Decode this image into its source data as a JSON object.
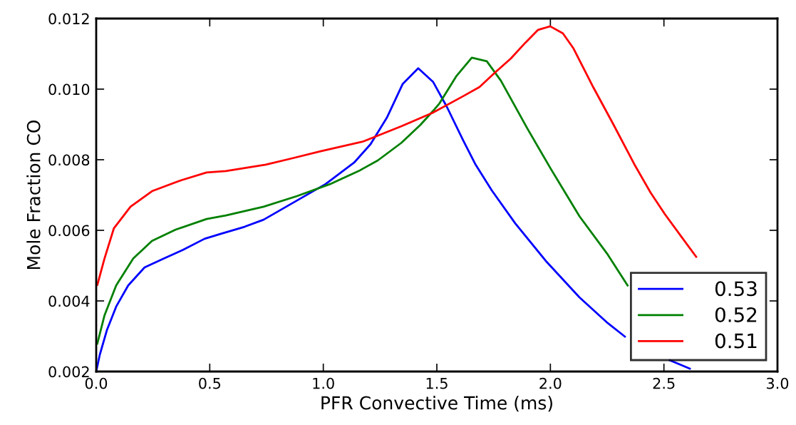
{
  "chart_data": {
    "type": "line",
    "xlabel": "PFR Convective Time (ms)",
    "ylabel": "Mole Fraction CO",
    "xlim": [
      0.0,
      3.0
    ],
    "xticks": [
      {
        "value": 0.0,
        "label": "0.0"
      },
      {
        "value": 0.5,
        "label": "0.5"
      },
      {
        "value": 1.0,
        "label": "1.0"
      },
      {
        "value": 1.5,
        "label": "1.5"
      },
      {
        "value": 2.0,
        "label": "2.0"
      },
      {
        "value": 2.5,
        "label": "2.5"
      },
      {
        "value": 3.0,
        "label": "3.0"
      }
    ],
    "ylim": [
      0.002,
      0.012
    ],
    "yticks": [
      {
        "value": 0.002,
        "label": "0.002"
      },
      {
        "value": 0.004,
        "label": "0.004"
      },
      {
        "value": 0.006,
        "label": "0.006"
      },
      {
        "value": 0.008,
        "label": "0.008"
      },
      {
        "value": 0.01,
        "label": "0.010"
      },
      {
        "value": 0.012,
        "label": "0.012"
      }
    ],
    "grid": false,
    "legend": "bottom right",
    "line_style": "solid",
    "marker": "none",
    "series": [
      {
        "name": "0.53",
        "color": "#0000ff",
        "x": [
          0.0,
          0.016,
          0.047,
          0.088,
          0.141,
          0.213,
          0.298,
          0.383,
          0.477,
          0.549,
          0.653,
          0.737,
          0.853,
          1.01,
          1.136,
          1.208,
          1.28,
          1.349,
          1.418,
          1.484,
          1.544,
          1.616,
          1.669,
          1.742,
          1.845,
          1.983,
          2.128,
          2.253,
          2.328,
          2.43,
          2.526,
          2.614
        ],
        "values": [
          0.002,
          0.00248,
          0.00317,
          0.00384,
          0.00444,
          0.00495,
          0.0052,
          0.00545,
          0.00576,
          0.0059,
          0.0061,
          0.0063,
          0.00673,
          0.00731,
          0.00792,
          0.00844,
          0.00919,
          0.01014,
          0.01059,
          0.0102,
          0.0095,
          0.00855,
          0.00788,
          0.00713,
          0.0062,
          0.00511,
          0.0041,
          0.00337,
          0.00299,
          null,
          0.00232,
          0.00208
        ]
      },
      {
        "name": "0.52",
        "color": "#008000",
        "x": [
          0.005,
          0.036,
          0.088,
          0.163,
          0.246,
          0.35,
          0.486,
          0.571,
          0.737,
          0.884,
          1.03,
          1.156,
          1.24,
          1.344,
          1.428,
          1.49,
          1.512,
          1.585,
          1.654,
          1.72,
          1.782,
          1.898,
          2.002,
          2.128,
          2.253,
          2.34
        ],
        "values": [
          0.00279,
          0.00358,
          0.00444,
          0.0052,
          0.0057,
          0.00602,
          0.00632,
          0.00642,
          0.00667,
          0.00697,
          0.00731,
          0.00768,
          0.00798,
          0.00848,
          0.00899,
          0.00943,
          0.0096,
          0.01036,
          0.01089,
          0.01079,
          0.01024,
          0.00889,
          0.00774,
          0.0064,
          0.00531,
          0.00444
        ]
      },
      {
        "name": "0.51",
        "color": "#ff0000",
        "x": [
          0.0,
          0.005,
          0.036,
          0.078,
          0.151,
          0.246,
          0.37,
          0.486,
          0.571,
          0.747,
          0.863,
          0.988,
          1.177,
          1.344,
          1.481,
          1.616,
          1.688,
          1.751,
          1.826,
          1.889,
          1.946,
          1.999,
          2.055,
          2.102,
          2.19,
          2.275,
          2.369,
          2.441,
          2.504,
          2.579,
          2.642
        ],
        "values": [
          0.0045,
          0.00445,
          0.00519,
          0.00606,
          0.00667,
          0.00711,
          0.00741,
          0.00764,
          0.00768,
          0.00786,
          0.00804,
          0.00824,
          0.00852,
          0.00895,
          0.00933,
          0.0098,
          0.01006,
          0.01044,
          0.01087,
          0.01131,
          0.01168,
          0.01178,
          0.01158,
          0.01115,
          0.01004,
          0.00903,
          0.00788,
          0.00707,
          0.00646,
          0.0058,
          0.00525
        ]
      }
    ]
  }
}
